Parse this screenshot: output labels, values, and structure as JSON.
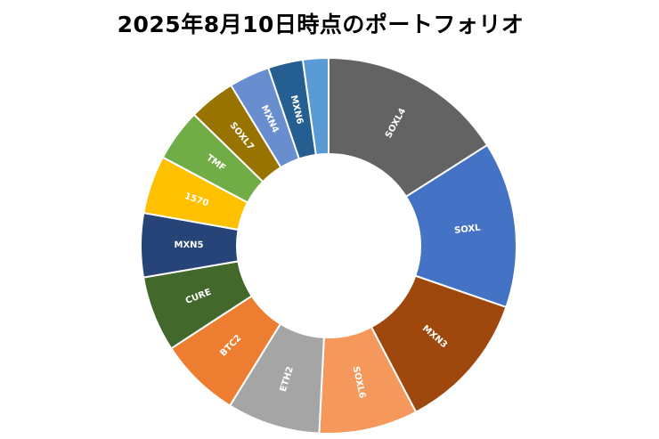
{
  "chart_data": {
    "type": "pie",
    "variant": "donut",
    "title": "2025年8月10日時点のポートフォリオ",
    "legend": "none",
    "start_angle_deg": 0,
    "direction": "clockwise",
    "slices": [
      {
        "label": "SOXL4",
        "value": 16.0,
        "color": "#636363"
      },
      {
        "label": "SOXL",
        "value": 14.3,
        "color": "#4472C4"
      },
      {
        "label": "MXN3",
        "value": 12.0,
        "color": "#9E480E"
      },
      {
        "label": "SOXL6",
        "value": 8.5,
        "color": "#F4995B"
      },
      {
        "label": "ETH2",
        "value": 8.0,
        "color": "#A5A5A5"
      },
      {
        "label": "BTC2",
        "value": 7.0,
        "color": "#ED7D31"
      },
      {
        "label": "CURE",
        "value": 6.5,
        "color": "#43682B"
      },
      {
        "label": "MXN5",
        "value": 5.5,
        "color": "#264478"
      },
      {
        "label": "1570",
        "value": 5.0,
        "color": "#FFC000"
      },
      {
        "label": "TMF",
        "value": 4.5,
        "color": "#70AD47"
      },
      {
        "label": "SOXL7",
        "value": 4.0,
        "color": "#997300"
      },
      {
        "label": "MXN4",
        "value": 3.5,
        "color": "#698ED0"
      },
      {
        "label": "MXN6",
        "value": 3.0,
        "color": "#255E91"
      },
      {
        "label": "",
        "value": 2.2,
        "color": "#5B9BD5"
      }
    ]
  }
}
